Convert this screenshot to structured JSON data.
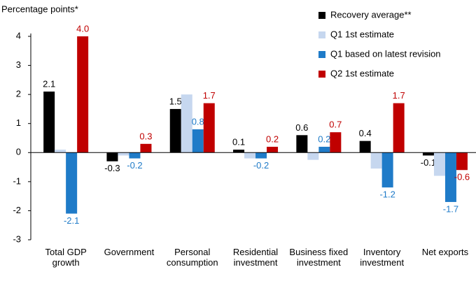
{
  "chart_data": {
    "type": "bar",
    "y_axis_title": "Percentage points*",
    "categories": [
      "Total GDP growth",
      "Government",
      "Personal consumption",
      "Residential investment",
      "Business fixed investment",
      "Inventory investment",
      "Net exports"
    ],
    "series": [
      {
        "name": "Recovery average**",
        "color": "#000000",
        "values": [
          2.1,
          -0.3,
          1.5,
          0.1,
          0.6,
          0.4,
          -0.1
        ]
      },
      {
        "name": "Q1 1st estimate",
        "color": "#c6d7ef",
        "values": [
          0.1,
          -0.1,
          2.0,
          -0.2,
          -0.25,
          -0.55,
          -0.8
        ]
      },
      {
        "name": "Q1 based on latest revision",
        "color": "#1f7bc8",
        "values": [
          -2.1,
          -0.2,
          0.8,
          -0.2,
          0.2,
          -1.2,
          -1.7
        ]
      },
      {
        "name": "Q2 1st estimate",
        "color": "#c00000",
        "values": [
          4.0,
          0.3,
          1.7,
          0.2,
          0.7,
          1.7,
          -0.6
        ],
        "value_labels": [
          "4.0",
          "0.3",
          "1.7",
          "0.2",
          "0.7",
          "1.7",
          "-0.6"
        ]
      }
    ],
    "labeled_series": [
      0,
      2,
      3
    ],
    "ylim": [
      -3,
      4.1
    ],
    "yticks": [
      -3,
      -2,
      -1,
      0,
      1,
      2,
      3,
      4
    ],
    "legend": "upper-right"
  }
}
